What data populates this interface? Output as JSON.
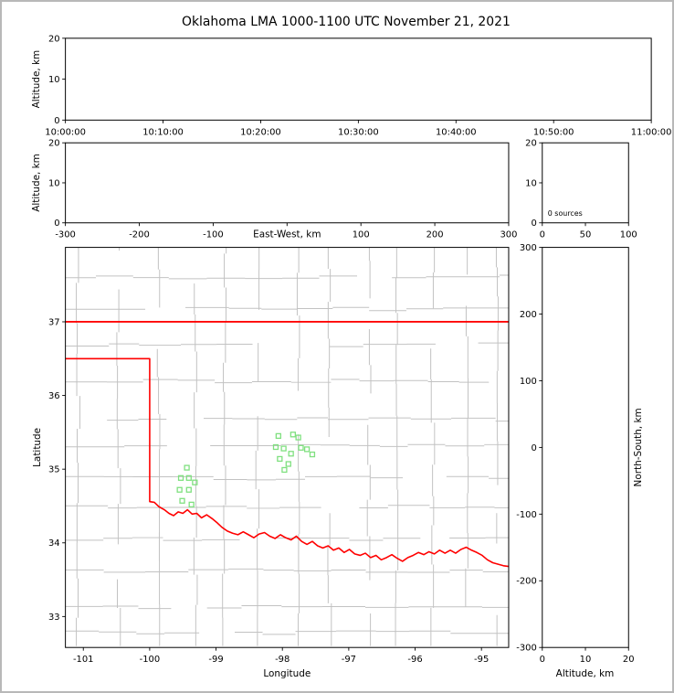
{
  "title": "Oklahoma LMA 1000-1100 UTC November 21, 2021",
  "colors": {
    "axis": "#000000",
    "county_lines": "#c2c2c2",
    "state_boundary": "#ff0000",
    "sources": "#7FE07F",
    "background": "#ffffff",
    "outer_frame": "#b8b8b8"
  },
  "chart_data": [
    {
      "id": "time_height",
      "type": "scatter",
      "ylabel": "Altitude, km",
      "ylim": [
        0,
        20
      ],
      "yticks": [
        0,
        10,
        20
      ],
      "xtick_labels": [
        "10:00:00",
        "10:10:00",
        "10:20:00",
        "10:30:00",
        "10:40:00",
        "10:50:00",
        "11:00:00"
      ],
      "points": []
    },
    {
      "id": "eastwest_height",
      "type": "scatter",
      "xlabel": "East-West, km",
      "ylabel": "Altitude, km",
      "xlim": [
        -300,
        300
      ],
      "xticks": [
        -300,
        -200,
        -100,
        0,
        100,
        200,
        300
      ],
      "ylim": [
        0,
        20
      ],
      "yticks": [
        0,
        10,
        20
      ],
      "points": []
    },
    {
      "id": "altitude_histogram",
      "type": "line",
      "annotation": "0 sources",
      "xlim": [
        0,
        100
      ],
      "xticks": [
        0,
        50,
        100
      ],
      "ylim": [
        0,
        20
      ],
      "yticks": [
        0,
        10,
        20
      ],
      "points": []
    },
    {
      "id": "plan_view_map",
      "type": "scatter",
      "xlabel": "Longitude",
      "ylabel": "Latitude",
      "xlim": [
        -101.27,
        -94.59
      ],
      "ylim": [
        32.58,
        38.01
      ],
      "xticks": [
        -101,
        -100,
        -99,
        -98,
        -97,
        -96,
        -95
      ],
      "yticks": [
        33,
        34,
        35,
        36,
        37
      ],
      "sources_lon_lat": [
        [
          -98.06,
          35.45
        ],
        [
          -97.84,
          35.47
        ],
        [
          -97.76,
          35.43
        ],
        [
          -98.1,
          35.3
        ],
        [
          -97.98,
          35.28
        ],
        [
          -97.72,
          35.29
        ],
        [
          -97.63,
          35.27
        ],
        [
          -97.87,
          35.21
        ],
        [
          -98.04,
          35.14
        ],
        [
          -97.91,
          35.07
        ],
        [
          -97.97,
          34.99
        ],
        [
          -97.55,
          35.2
        ],
        [
          -99.44,
          35.02
        ],
        [
          -99.53,
          34.88
        ],
        [
          -99.41,
          34.88
        ],
        [
          -99.32,
          34.82
        ],
        [
          -99.55,
          34.72
        ],
        [
          -99.41,
          34.72
        ],
        [
          -99.51,
          34.57
        ],
        [
          -99.37,
          34.52
        ]
      ],
      "state_boundary_north": [
        [
          -101.27,
          37.0
        ],
        [
          -94.59,
          37.0
        ]
      ],
      "state_boundary_main": [
        [
          -101.27,
          36.5
        ],
        [
          -100.0,
          36.5
        ],
        [
          -100.0,
          34.56
        ],
        [
          -99.93,
          34.55
        ],
        [
          -99.86,
          34.49
        ],
        [
          -99.78,
          34.45
        ],
        [
          -99.71,
          34.4
        ],
        [
          -99.64,
          34.37
        ],
        [
          -99.57,
          34.42
        ],
        [
          -99.5,
          34.4
        ],
        [
          -99.43,
          34.45
        ],
        [
          -99.36,
          34.39
        ],
        [
          -99.29,
          34.4
        ],
        [
          -99.22,
          34.34
        ],
        [
          -99.14,
          34.38
        ],
        [
          -99.06,
          34.33
        ],
        [
          -98.98,
          34.27
        ],
        [
          -98.91,
          34.21
        ],
        [
          -98.83,
          34.16
        ],
        [
          -98.75,
          34.13
        ],
        [
          -98.67,
          34.11
        ],
        [
          -98.59,
          34.15
        ],
        [
          -98.51,
          34.11
        ],
        [
          -98.43,
          34.07
        ],
        [
          -98.35,
          34.12
        ],
        [
          -98.27,
          34.14
        ],
        [
          -98.19,
          34.09
        ],
        [
          -98.11,
          34.06
        ],
        [
          -98.03,
          34.11
        ],
        [
          -97.95,
          34.07
        ],
        [
          -97.87,
          34.04
        ],
        [
          -97.79,
          34.09
        ],
        [
          -97.71,
          34.02
        ],
        [
          -97.63,
          33.98
        ],
        [
          -97.55,
          34.02
        ],
        [
          -97.47,
          33.96
        ],
        [
          -97.39,
          33.93
        ],
        [
          -97.31,
          33.96
        ],
        [
          -97.23,
          33.9
        ],
        [
          -97.15,
          33.93
        ],
        [
          -97.07,
          33.87
        ],
        [
          -96.99,
          33.91
        ],
        [
          -96.91,
          33.85
        ],
        [
          -96.83,
          33.83
        ],
        [
          -96.75,
          33.86
        ],
        [
          -96.67,
          33.8
        ],
        [
          -96.59,
          33.83
        ],
        [
          -96.51,
          33.77
        ],
        [
          -96.43,
          33.8
        ],
        [
          -96.35,
          33.84
        ],
        [
          -96.27,
          33.79
        ],
        [
          -96.19,
          33.75
        ],
        [
          -96.11,
          33.8
        ],
        [
          -96.03,
          33.83
        ],
        [
          -95.95,
          33.87
        ],
        [
          -95.87,
          33.84
        ],
        [
          -95.79,
          33.88
        ],
        [
          -95.71,
          33.85
        ],
        [
          -95.63,
          33.9
        ],
        [
          -95.55,
          33.86
        ],
        [
          -95.47,
          33.9
        ],
        [
          -95.39,
          33.86
        ],
        [
          -95.31,
          33.91
        ],
        [
          -95.23,
          33.94
        ],
        [
          -95.15,
          33.9
        ],
        [
          -95.07,
          33.87
        ],
        [
          -94.99,
          33.83
        ],
        [
          -94.91,
          33.77
        ],
        [
          -94.83,
          33.73
        ],
        [
          -94.75,
          33.71
        ],
        [
          -94.67,
          33.69
        ],
        [
          -94.59,
          33.68
        ]
      ]
    },
    {
      "id": "northsouth_height",
      "type": "scatter",
      "xlabel": "Altitude, km",
      "ylabel": "North-South, km",
      "xlim": [
        0,
        20
      ],
      "xticks": [
        0,
        10,
        20
      ],
      "ylim": [
        -300,
        300
      ],
      "yticks": [
        300,
        200,
        100,
        0,
        -100,
        -200,
        -300
      ],
      "points": []
    }
  ]
}
